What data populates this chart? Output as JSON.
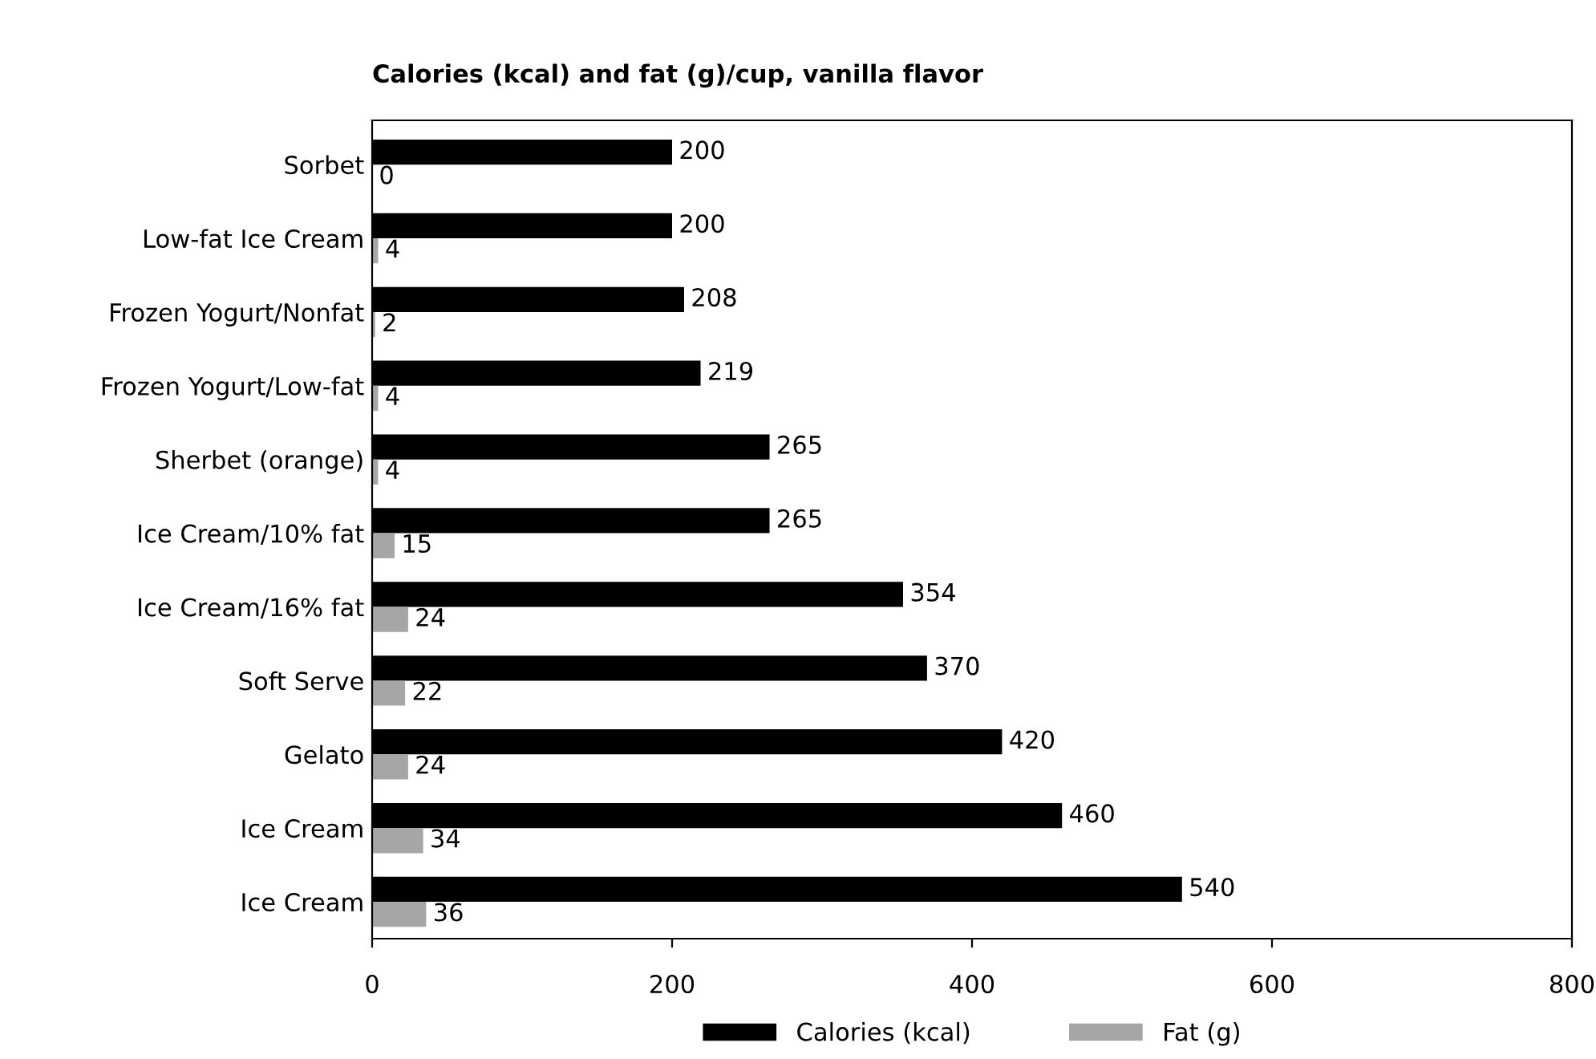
{
  "chart_data": {
    "type": "bar",
    "orientation": "horizontal",
    "title": "Calories (kcal) and fat (g)/cup, vanilla flavor",
    "categories": [
      "Sorbet",
      "Low-fat Ice Cream",
      "Frozen Yogurt/Nonfat",
      "Frozen Yogurt/Low-fat",
      "Sherbet (orange)",
      "Ice Cream/10% fat",
      "Ice Cream/16% fat",
      "Soft Serve",
      "Gelato",
      "Ice Cream",
      "Ice Cream"
    ],
    "series": [
      {
        "name": "Calories (kcal)",
        "color": "#000000",
        "values": [
          200,
          200,
          208,
          219,
          265,
          265,
          354,
          370,
          420,
          460,
          540
        ]
      },
      {
        "name": "Fat (g)",
        "color": "#a6a6a6",
        "values": [
          0,
          4,
          2,
          4,
          4,
          15,
          24,
          22,
          24,
          34,
          36
        ]
      }
    ],
    "xlim": [
      0,
      800
    ],
    "xticks": [
      0,
      200,
      400,
      600,
      800
    ],
    "data_labels": true,
    "grid": false,
    "legend": "bottom"
  }
}
